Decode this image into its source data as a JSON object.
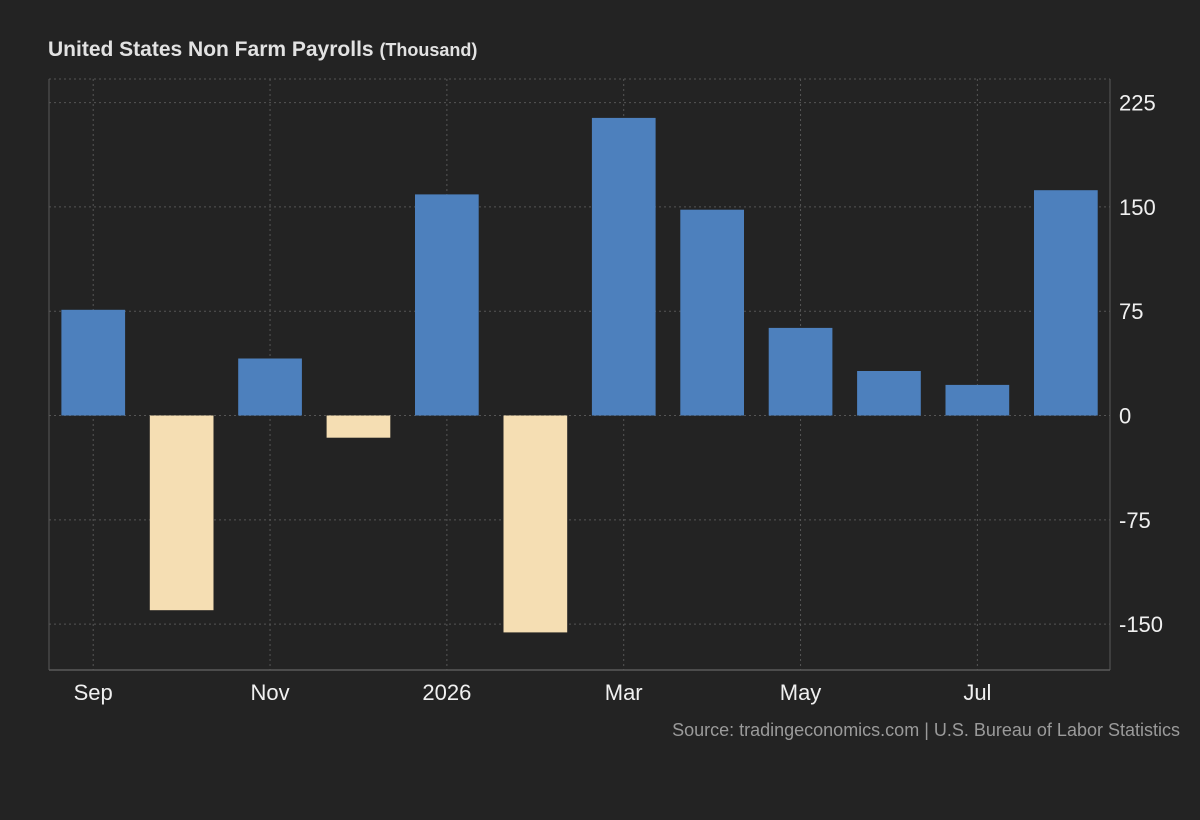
{
  "chart_data": {
    "type": "bar",
    "title": "United States Non Farm Payrolls",
    "unit": "(Thousand)",
    "source": "Source: tradingeconomics.com | U.S. Bureau of Labor Statistics",
    "periods": [
      "2025-09",
      "2025-10",
      "2025-11",
      "2025-12",
      "2026-01",
      "2026-02",
      "2026-03",
      "2026-04",
      "2026-05",
      "2026-06",
      "2026-07",
      "2026-08"
    ],
    "values": [
      76,
      -140,
      41,
      -16,
      159,
      -156,
      214,
      148,
      63,
      32,
      22,
      162
    ],
    "x_tick_labels": [
      {
        "label": "Sep",
        "period_index": 0
      },
      {
        "label": "Nov",
        "period_index": 2
      },
      {
        "label": "2026",
        "period_index": 4
      },
      {
        "label": "Mar",
        "period_index": 6
      },
      {
        "label": "May",
        "period_index": 8
      },
      {
        "label": "Jul",
        "period_index": 10
      }
    ],
    "y_ticks": [
      225,
      150,
      75,
      0,
      -75,
      -150
    ],
    "ylim": [
      -183,
      242
    ],
    "y_axis_side": "right",
    "grid": true,
    "colors": {
      "positive": "#4d80bd",
      "negative": "#f5deb3",
      "grid": "#555555",
      "axis": "#5a5a5a",
      "background": "#232323"
    }
  }
}
